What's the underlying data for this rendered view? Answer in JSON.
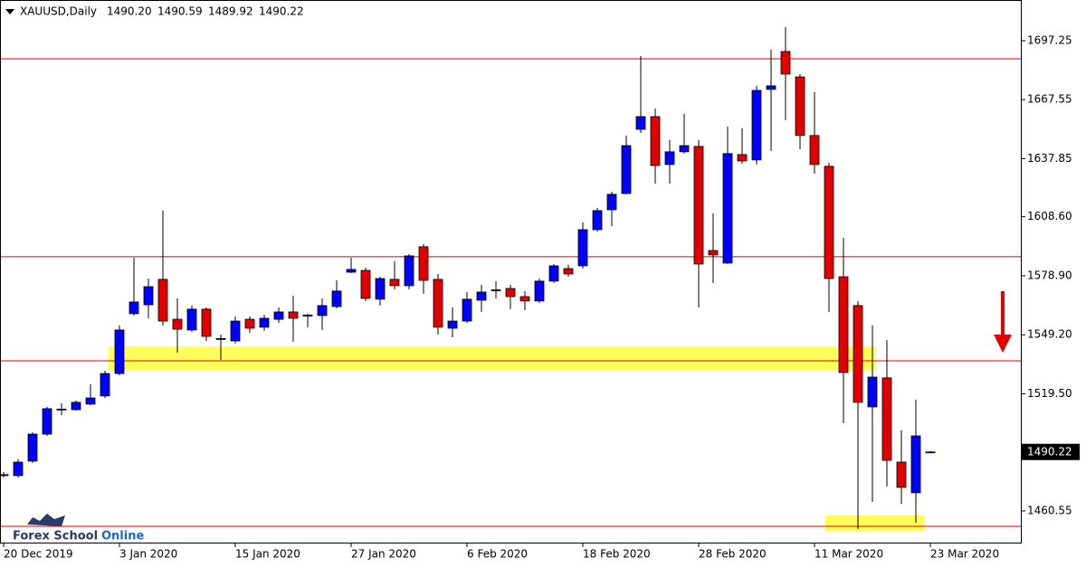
{
  "header": {
    "symbol": "XAUUSD,Daily",
    "ohlc": [
      "1490.20",
      "1490.59",
      "1489.92",
      "1490.22"
    ]
  },
  "logo": [
    "Forex School",
    "Online"
  ],
  "chart_data": {
    "type": "candlestick",
    "categories": [
      "20 Dec 2019",
      null,
      null,
      null,
      null,
      null,
      null,
      null,
      "3 Jan 2020",
      null,
      null,
      null,
      null,
      null,
      null,
      null,
      "15 Jan 2020",
      null,
      null,
      null,
      null,
      null,
      null,
      null,
      "27 Jan 2020",
      null,
      null,
      null,
      null,
      null,
      null,
      null,
      "6 Feb 2020",
      null,
      null,
      null,
      null,
      null,
      null,
      null,
      "18 Feb 2020",
      null,
      null,
      null,
      null,
      null,
      null,
      null,
      "28 Feb 2020",
      null,
      null,
      null,
      null,
      null,
      null,
      null,
      "11 Mar 2020",
      null,
      null,
      null,
      null,
      null,
      null,
      null,
      "23 Mar 2020"
    ],
    "open": [
      1478.3,
      1478.3,
      1485.6,
      1499.2,
      1511.5,
      1511.5,
      1514.3,
      1518.4,
      1529.7,
      1559.8,
      1564.3,
      1577.1,
      1557.0,
      1551.6,
      1562.1,
      1547.0,
      1546.1,
      1557.0,
      1553.0,
      1557.0,
      1560.7,
      1558.9,
      1558.9,
      1563.4,
      1580.7,
      1581.6,
      1567.1,
      1577.1,
      1573.9,
      1593.5,
      1577.1,
      1552.5,
      1556.1,
      1566.6,
      1571.6,
      1572.5,
      1568.4,
      1566.2,
      1576.2,
      1582.5,
      1583.9,
      1602.1,
      1612.1,
      1620.3,
      1652.6,
      1659.0,
      1634.9,
      1641.3,
      1644.0,
      1591.6,
      1585.3,
      1639.9,
      1637.2,
      1672.7,
      1691.8,
      1679.0,
      1649.5,
      1634.0,
      1578.4,
      1563.9,
      1512.9,
      1527.5,
      1485.1,
      1469.7,
      1490.2
    ],
    "high": [
      1480.1,
      1486.5,
      1500.1,
      1512.9,
      1514.7,
      1516.1,
      1524.3,
      1531.1,
      1553.9,
      1588.0,
      1577.5,
      1611.7,
      1567.5,
      1563.9,
      1563.0,
      1549.3,
      1558.4,
      1558.4,
      1559.3,
      1563.0,
      1568.9,
      1559.8,
      1567.5,
      1576.6,
      1588.0,
      1583.0,
      1578.4,
      1586.2,
      1589.8,
      1594.8,
      1579.8,
      1563.0,
      1570.7,
      1574.3,
      1576.2,
      1574.3,
      1571.2,
      1577.5,
      1584.8,
      1584.4,
      1605.8,
      1613.0,
      1621.2,
      1649.5,
      1689.5,
      1663.1,
      1647.2,
      1660.4,
      1647.2,
      1610.3,
      1654.0,
      1653.1,
      1674.5,
      1692.7,
      1704.1,
      1680.4,
      1671.3,
      1635.8,
      1598.0,
      1566.2,
      1553.9,
      1546.6,
      1501.1,
      1516.5,
      1490.59
    ],
    "low": [
      1477.4,
      1477.4,
      1484.7,
      1498.3,
      1508.8,
      1511.1,
      1513.8,
      1517.4,
      1528.8,
      1558.9,
      1557.5,
      1553.9,
      1540.2,
      1550.7,
      1546.1,
      1536.6,
      1544.8,
      1550.2,
      1551.1,
      1555.2,
      1545.7,
      1553.0,
      1551.6,
      1562.5,
      1580.3,
      1566.2,
      1563.9,
      1572.1,
      1572.1,
      1569.8,
      1549.3,
      1547.9,
      1555.2,
      1560.7,
      1567.5,
      1562.1,
      1561.6,
      1565.2,
      1575.3,
      1578.4,
      1582.5,
      1601.2,
      1603.9,
      1619.9,
      1650.8,
      1625.3,
      1625.3,
      1640.4,
      1563.0,
      1575.3,
      1584.8,
      1635.3,
      1634.9,
      1641.7,
      1657.2,
      1642.6,
      1630.3,
      1560.7,
      1504.7,
      1451.4,
      1465.1,
      1472.8,
      1464.2,
      1454.6,
      1489.92
    ],
    "close": [
      1478.8,
      1485.1,
      1499.2,
      1512.0,
      1511.8,
      1515.2,
      1517.4,
      1529.7,
      1551.6,
      1565.7,
      1573.4,
      1556.1,
      1552.0,
      1562.1,
      1548.4,
      1547.3,
      1556.1,
      1552.5,
      1557.5,
      1560.7,
      1557.5,
      1559.1,
      1563.9,
      1571.2,
      1582.1,
      1567.5,
      1577.5,
      1573.9,
      1588.9,
      1576.6,
      1553.0,
      1556.1,
      1567.1,
      1570.7,
      1571.8,
      1568.4,
      1566.2,
      1576.2,
      1583.9,
      1579.8,
      1602.1,
      1611.7,
      1619.9,
      1644.4,
      1659.0,
      1634.4,
      1641.3,
      1644.4,
      1584.8,
      1589.4,
      1640.4,
      1636.7,
      1672.2,
      1674.5,
      1680.4,
      1649.5,
      1634.9,
      1577.5,
      1530.2,
      1515.2,
      1527.9,
      1486.0,
      1472.4,
      1498.3,
      1490.22
    ],
    "up_color": "#0000ff",
    "down_color": "#e00000",
    "ylim": [
      1444.6,
      1717.7
    ],
    "yticks": [
      1697.25,
      1667.55,
      1637.85,
      {
        "value": 1608.6,
        "label": "1608.60"
      },
      {
        "value": 1578.9,
        "label": "1578.90"
      },
      {
        "value": 1549.2,
        "label": "1549.20"
      },
      {
        "value": 1519.5,
        "label": "1519.50"
      },
      1460.55
    ],
    "last_price": {
      "value": 1490.22,
      "label": "1490.22"
    },
    "hlines": [
      1688.1,
      1588.5,
      1536.1,
      1452.8
    ],
    "hline_color": "#e00000",
    "zones": [
      {
        "ylim": [
          1531.1,
          1543.4
        ],
        "xrange": [
          7.25,
          60.25
        ]
      },
      {
        "ylim": [
          1450.1,
          1458.3
        ],
        "xrange": [
          56.75,
          63.6
        ]
      }
    ],
    "zone_color": "#ffff40"
  }
}
